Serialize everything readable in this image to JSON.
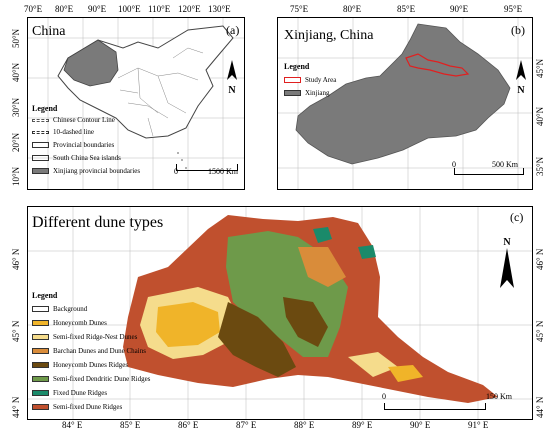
{
  "panel_a": {
    "letter": "(a)",
    "title": "China",
    "top_ticks": [
      "70°E",
      "80°E",
      "90°E",
      "100°E",
      "110°E",
      "120°E",
      "130°E"
    ],
    "left_ticks": [
      "50°N",
      "40°N",
      "30°N",
      "20°N",
      "10°N"
    ],
    "legend_title": "Legend",
    "legend_items": [
      "Chinese Contour Line",
      "10-dashed line",
      "Provincial boundaries",
      "South China Sea islands",
      "Xinjiang provincial boundaries"
    ],
    "scale_zero": "0",
    "scale_end": "1500 Km",
    "north": "N"
  },
  "panel_b": {
    "letter": "(b)",
    "title": "Xinjiang, China",
    "top_ticks": [
      "75°E",
      "80°E",
      "85°E",
      "90°E",
      "95°E"
    ],
    "right_ticks": [
      "45°N",
      "40°N",
      "35°N"
    ],
    "legend_title": "Legend",
    "legend_items": [
      "Study Area",
      "Xinjiang"
    ],
    "scale_zero": "0",
    "scale_end": "500 Km",
    "north": "N"
  },
  "panel_c": {
    "letter": "(c)",
    "title": "Different dune types",
    "bottom_ticks": [
      "84° E",
      "85° E",
      "86° E",
      "87° E",
      "88° E",
      "89° E",
      "90° E",
      "91° E"
    ],
    "left_ticks": [
      "46° N",
      "45° N",
      "44° N"
    ],
    "right_ticks": [
      "46° N",
      "45° N",
      "44° N"
    ],
    "legend_title": "Legend",
    "legend_items": [
      {
        "label": "Background",
        "color": "#ffffff"
      },
      {
        "label": "Honeycomb Dunes",
        "color": "#f0b429"
      },
      {
        "label": "Semi-fixed Ridge-Nest Dunes",
        "color": "#f5dc8c"
      },
      {
        "label": "Barchan Dunes and Dune Chains",
        "color": "#d98c3a"
      },
      {
        "label": "Honeycomb Dunes Ridges",
        "color": "#6b4a10"
      },
      {
        "label": "Semi-fixed Dendritic Dune Ridges",
        "color": "#6e9a4a"
      },
      {
        "label": "Fixed Dune Ridges",
        "color": "#1a8a6a"
      },
      {
        "label": "Semi-fixed Dune Ridges",
        "color": "#c0502e"
      }
    ],
    "scale_zero": "0",
    "scale_end": "150 Km",
    "north": "N"
  }
}
